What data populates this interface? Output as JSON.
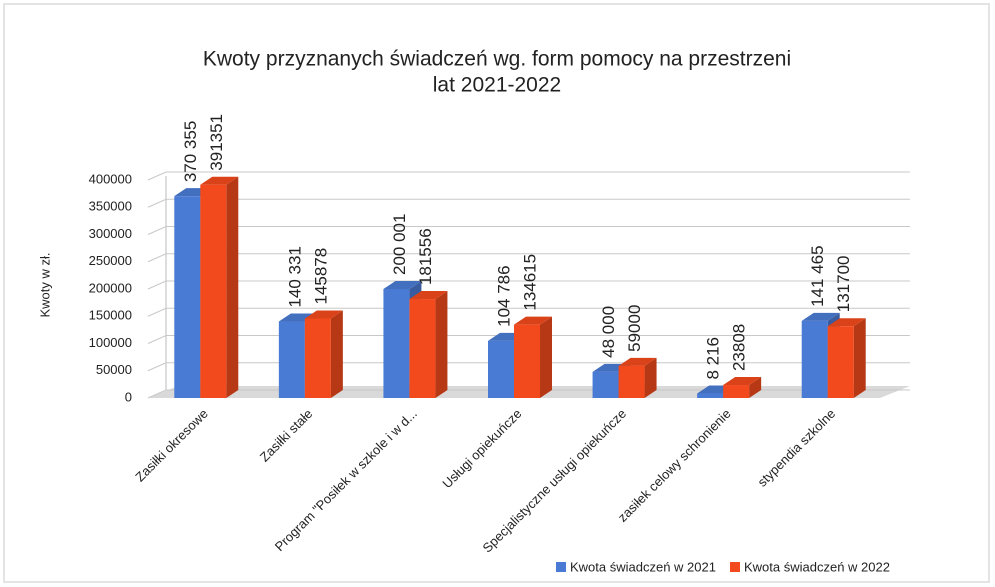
{
  "chart_data": {
    "type": "bar3d",
    "title": [
      "Kwoty przyznanych świadczeń wg. form pomocy na przestrzeni",
      "lat 2021-2022"
    ],
    "y_label": "Kwoty w zł.",
    "categories": [
      "Zasiłki okresowe",
      "Zasiłki stałe",
      "Program \"Posiłek w szkole i w d...",
      "Usługi opiekuńcze",
      "Specjalistyczne usługi opiekuńcze",
      "zasiłek celowy schronienie",
      "stypendia szkolne"
    ],
    "series": [
      {
        "name": "Kwota świadczeń w 2021",
        "color": "#4a7bd4",
        "values": [
          370355,
          140331,
          200001,
          104786,
          48000,
          8216,
          141465
        ],
        "value_labels": [
          "370 355",
          "140 331",
          "200 001",
          "104 786",
          "48 000",
          "8 216",
          "141 465"
        ]
      },
      {
        "name": "Kwota świadczeń w 2022",
        "color": "#f24a1c",
        "values": [
          391351,
          145878,
          181556,
          134615,
          59000,
          23808,
          131700
        ]
      }
    ],
    "ylim": [
      0,
      400000
    ],
    "yticks": [
      0,
      50000,
      100000,
      150000,
      200000,
      250000,
      300000,
      350000,
      400000
    ],
    "grid": true,
    "legend": "bottom-right"
  }
}
